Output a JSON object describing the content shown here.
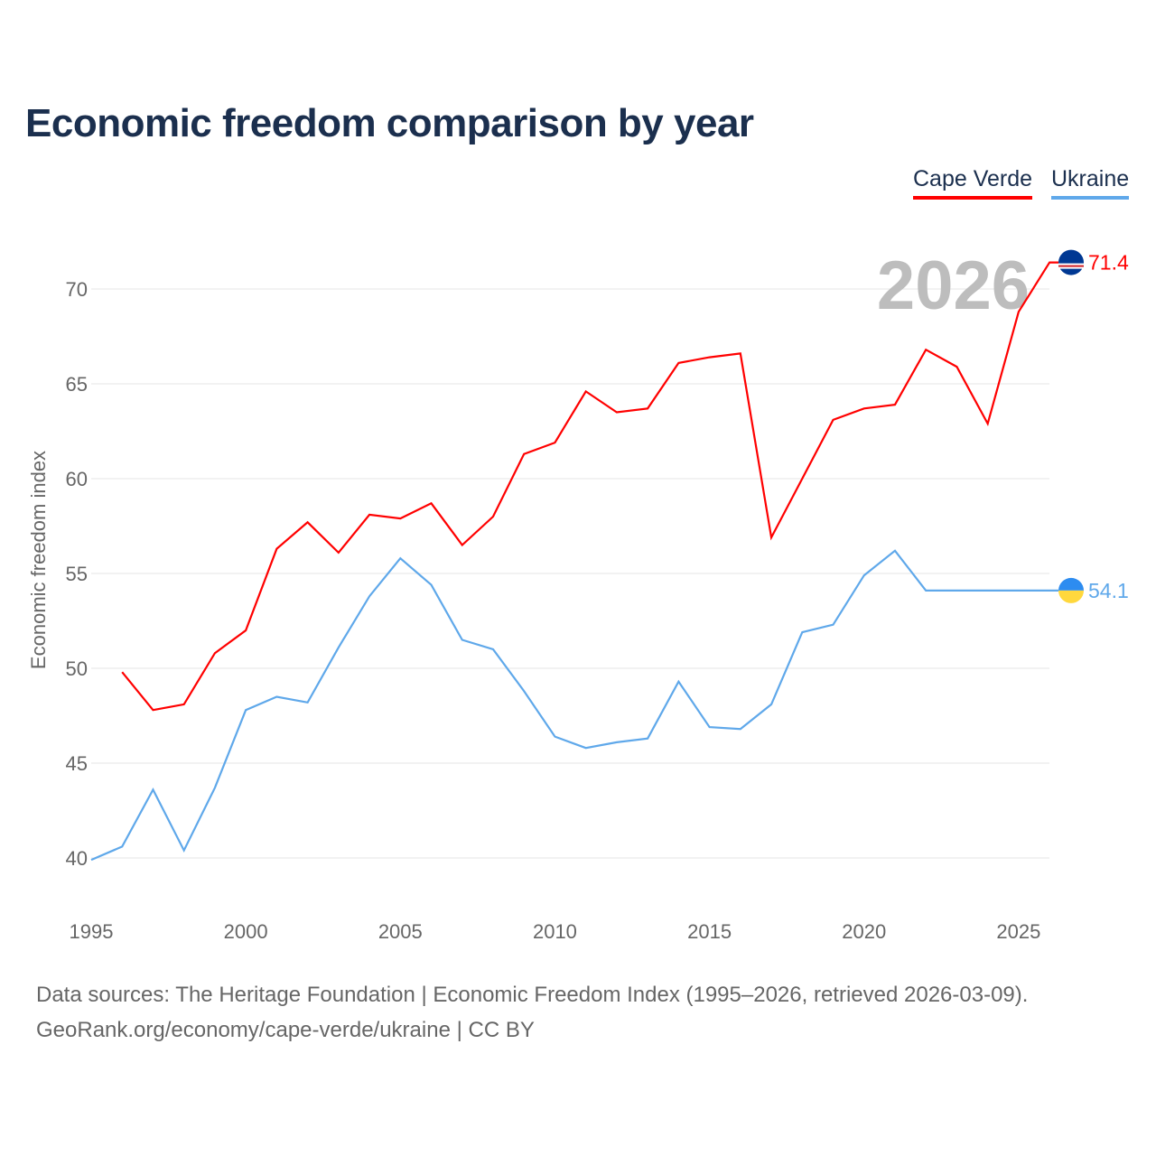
{
  "title": "Economic freedom comparison by year",
  "legend": [
    {
      "label": "Cape Verde",
      "color": "#ff0000"
    },
    {
      "label": "Ukraine",
      "color": "#5fa8ea"
    }
  ],
  "year_label": "2026",
  "footer": {
    "line1": "Data sources: The Heritage Foundation | Economic Freedom Index (1995–2026, retrieved 2026-03-09).",
    "line2": "GeoRank.org/economy/cape-verde/ukraine | CC BY"
  },
  "chart_data": {
    "type": "line",
    "title": "Economic freedom comparison by year",
    "xlabel": "",
    "ylabel": "Economic freedom index",
    "xlim": [
      1995,
      2026
    ],
    "ylim": [
      40,
      72
    ],
    "xticks": [
      "1995",
      "2000",
      "2005",
      "2010",
      "2015",
      "2020",
      "2025"
    ],
    "yticks": [
      "40",
      "45",
      "50",
      "55",
      "60",
      "65",
      "70"
    ],
    "grid": true,
    "legend_position": "top-right",
    "series": [
      {
        "name": "Cape Verde",
        "color": "#ff0000",
        "end_label": "71.4",
        "x": [
          1996,
          1997,
          1998,
          1999,
          2000,
          2001,
          2002,
          2003,
          2004,
          2005,
          2006,
          2007,
          2008,
          2009,
          2010,
          2011,
          2012,
          2013,
          2014,
          2015,
          2016,
          2017,
          2018,
          2019,
          2020,
          2021,
          2022,
          2023,
          2024,
          2025,
          2026
        ],
        "values": [
          49.8,
          47.8,
          48.1,
          50.8,
          52.0,
          56.3,
          57.7,
          56.1,
          58.1,
          57.9,
          58.7,
          56.5,
          58.0,
          61.3,
          61.9,
          64.6,
          63.5,
          63.7,
          66.1,
          66.4,
          66.6,
          56.9,
          60.0,
          63.1,
          63.7,
          63.9,
          66.8,
          65.9,
          62.9,
          68.8,
          71.4
        ]
      },
      {
        "name": "Ukraine",
        "color": "#5fa8ea",
        "end_label": "54.1",
        "x": [
          1995,
          1996,
          1997,
          1998,
          1999,
          2000,
          2001,
          2002,
          2003,
          2004,
          2005,
          2006,
          2007,
          2008,
          2009,
          2010,
          2011,
          2012,
          2013,
          2014,
          2015,
          2016,
          2017,
          2018,
          2019,
          2020,
          2021,
          2022,
          2023,
          2024,
          2025,
          2026
        ],
        "values": [
          39.9,
          40.6,
          43.6,
          40.4,
          43.7,
          47.8,
          48.5,
          48.2,
          51.1,
          53.8,
          55.8,
          54.4,
          51.5,
          51.0,
          48.8,
          46.4,
          45.8,
          46.1,
          46.3,
          49.3,
          46.9,
          46.8,
          48.1,
          51.9,
          52.3,
          54.9,
          56.2,
          54.1,
          54.1,
          54.1,
          54.1,
          54.1
        ]
      }
    ]
  }
}
